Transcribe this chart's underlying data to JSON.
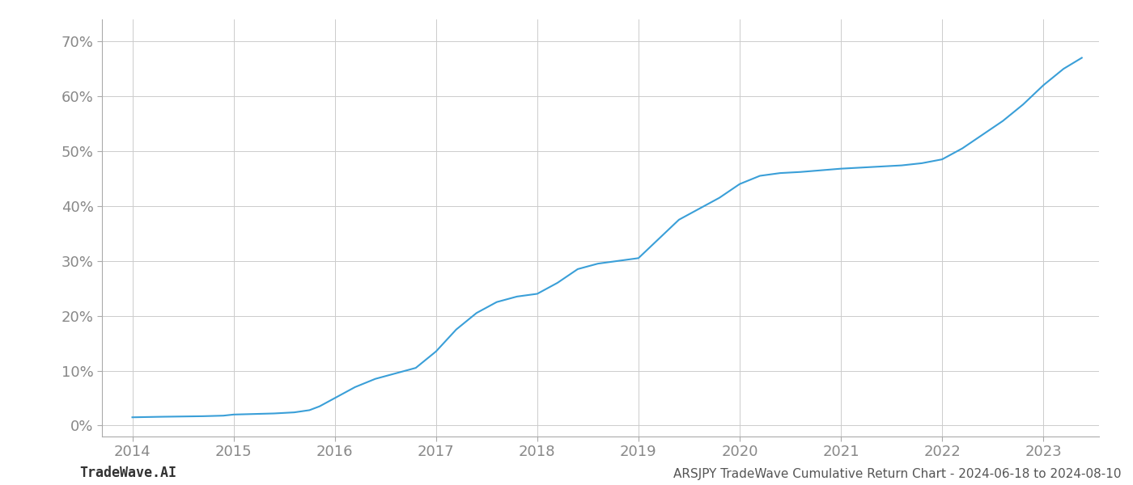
{
  "title": "ARSJPY TradeWave Cumulative Return Chart - 2024-06-18 to 2024-08-10",
  "watermark": "TradeWave.AI",
  "line_color": "#3a9fd8",
  "background_color": "#ffffff",
  "grid_color": "#cccccc",
  "x_values": [
    2014.0,
    2014.15,
    2014.3,
    2014.5,
    2014.7,
    2014.9,
    2015.0,
    2015.2,
    2015.4,
    2015.6,
    2015.75,
    2015.85,
    2016.0,
    2016.2,
    2016.4,
    2016.6,
    2016.8,
    2017.0,
    2017.2,
    2017.4,
    2017.6,
    2017.8,
    2018.0,
    2018.2,
    2018.4,
    2018.6,
    2018.8,
    2019.0,
    2019.2,
    2019.4,
    2019.6,
    2019.8,
    2020.0,
    2020.2,
    2020.4,
    2020.6,
    2020.8,
    2021.0,
    2021.2,
    2021.4,
    2021.6,
    2021.8,
    2022.0,
    2022.2,
    2022.4,
    2022.6,
    2022.8,
    2023.0,
    2023.2,
    2023.38
  ],
  "y_values": [
    1.5,
    1.55,
    1.6,
    1.65,
    1.7,
    1.8,
    2.0,
    2.1,
    2.2,
    2.4,
    2.8,
    3.5,
    5.0,
    7.0,
    8.5,
    9.5,
    10.5,
    13.5,
    17.5,
    20.5,
    22.5,
    23.5,
    24.0,
    26.0,
    28.5,
    29.5,
    30.0,
    30.5,
    34.0,
    37.5,
    39.5,
    41.5,
    44.0,
    45.5,
    46.0,
    46.2,
    46.5,
    46.8,
    47.0,
    47.2,
    47.4,
    47.8,
    48.5,
    50.5,
    53.0,
    55.5,
    58.5,
    62.0,
    65.0,
    67.0
  ],
  "xlim": [
    2013.7,
    2023.55
  ],
  "ylim": [
    -2,
    74
  ],
  "yticks": [
    0,
    10,
    20,
    30,
    40,
    50,
    60,
    70
  ],
  "ytick_labels": [
    "0%",
    "10%",
    "20%",
    "30%",
    "40%",
    "50%",
    "60%",
    "70%"
  ],
  "xticks": [
    2014,
    2015,
    2016,
    2017,
    2018,
    2019,
    2020,
    2021,
    2022,
    2023
  ],
  "xtick_labels": [
    "2014",
    "2015",
    "2016",
    "2017",
    "2018",
    "2019",
    "2020",
    "2021",
    "2022",
    "2023"
  ],
  "line_width": 1.5,
  "tick_fontsize": 13,
  "title_fontsize": 11,
  "watermark_fontsize": 12
}
